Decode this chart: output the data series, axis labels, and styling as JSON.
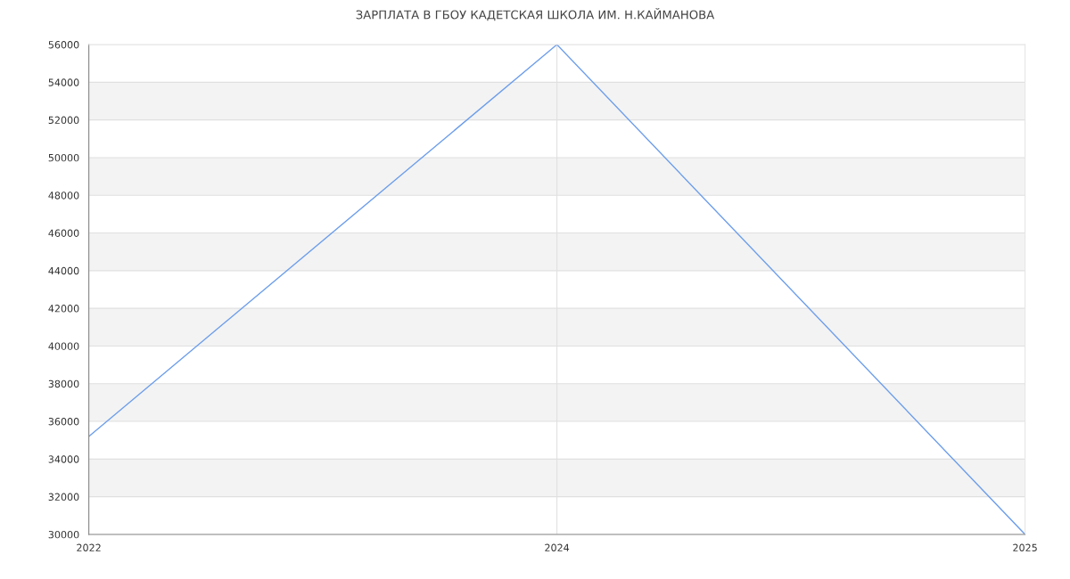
{
  "chart_data": {
    "type": "line",
    "title": "ЗАРПЛАТА В ГБОУ КАДЕТСКАЯ ШКОЛА ИМ. Н.КАЙМАНОВА",
    "categories": [
      "2022",
      "2024",
      "2025"
    ],
    "series": [
      {
        "color": "#6d9eeb",
        "values": [
          35200,
          56000,
          30000
        ]
      }
    ],
    "ylim": [
      30000,
      56000
    ],
    "yticks": [
      30000,
      32000,
      34000,
      36000,
      38000,
      40000,
      42000,
      44000,
      46000,
      48000,
      50000,
      52000,
      54000,
      56000
    ],
    "grid": true,
    "legend": false,
    "marker": "none",
    "line_style": "solid"
  }
}
